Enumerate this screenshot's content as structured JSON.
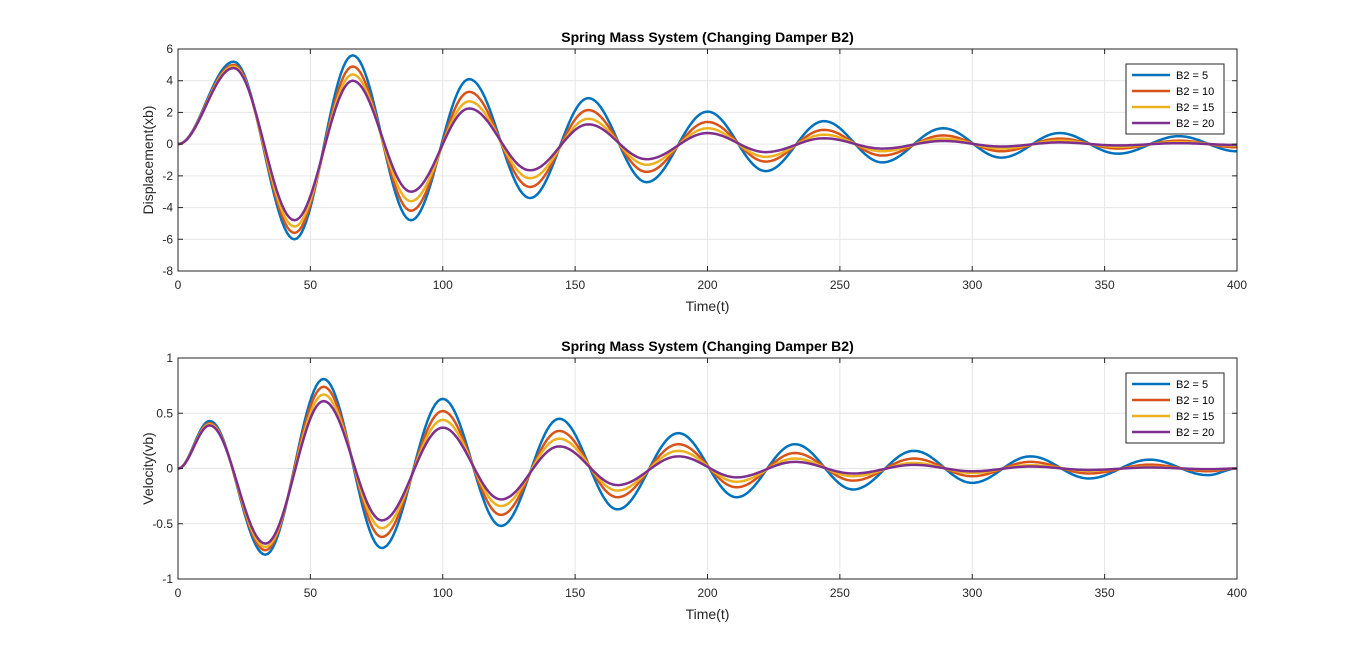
{
  "colors": [
    "#0072BD",
    "#D95319",
    "#EDB120",
    "#7E2F8E"
  ],
  "chart_data": [
    {
      "type": "line",
      "title": "Spring Mass System (Changing Damper B2)",
      "xlabel": "Time(t)",
      "ylabel": "Displacement(xb)",
      "xlim": [
        0,
        400
      ],
      "ylim": [
        -8,
        6
      ],
      "xticks": [
        0,
        50,
        100,
        150,
        200,
        250,
        300,
        350,
        400
      ],
      "yticks": [
        -8,
        -6,
        -4,
        -2,
        0,
        2,
        4,
        6
      ],
      "xtick_labels": [
        "0",
        "50",
        "100",
        "150",
        "200",
        "250",
        "300",
        "350",
        "400"
      ],
      "ytick_labels": [
        "-8",
        "-6",
        "-4",
        "-2",
        "0",
        "2",
        "4",
        "6"
      ],
      "grid": true,
      "legend_position": "top-right",
      "x": [
        0,
        21,
        44,
        66,
        88,
        110,
        133,
        155,
        177,
        200,
        222,
        244,
        266,
        289,
        311,
        333,
        355,
        378,
        400
      ],
      "series": [
        {
          "name": "B2 = 5",
          "values": [
            0,
            5.2,
            -6.0,
            5.6,
            -4.8,
            4.1,
            -3.4,
            2.9,
            -2.4,
            2.05,
            -1.7,
            1.45,
            -1.15,
            1.0,
            -0.85,
            0.7,
            -0.6,
            0.5,
            -0.45
          ]
        },
        {
          "name": "B2 = 10",
          "values": [
            0,
            5.0,
            -5.6,
            4.9,
            -4.2,
            3.3,
            -2.7,
            2.15,
            -1.75,
            1.4,
            -1.1,
            0.9,
            -0.72,
            0.55,
            -0.45,
            0.35,
            -0.28,
            0.22,
            -0.2
          ]
        },
        {
          "name": "B2 = 15",
          "values": [
            0,
            4.9,
            -5.2,
            4.4,
            -3.6,
            2.7,
            -2.15,
            1.6,
            -1.3,
            1.0,
            -0.8,
            0.6,
            -0.45,
            0.35,
            -0.28,
            0.22,
            -0.17,
            0.13,
            -0.1
          ]
        },
        {
          "name": "B2 = 20",
          "values": [
            0,
            4.8,
            -4.8,
            4.0,
            -3.0,
            2.25,
            -1.65,
            1.25,
            -0.95,
            0.7,
            -0.5,
            0.37,
            -0.28,
            0.2,
            -0.15,
            0.11,
            -0.08,
            0.06,
            -0.05
          ]
        }
      ]
    },
    {
      "type": "line",
      "title": "Spring Mass System (Changing Damper B2)",
      "xlabel": "Time(t)",
      "ylabel": "Velocity(vb)",
      "xlim": [
        0,
        400
      ],
      "ylim": [
        -1,
        1
      ],
      "xticks": [
        0,
        50,
        100,
        150,
        200,
        250,
        300,
        350,
        400
      ],
      "yticks": [
        -1,
        -0.5,
        0,
        0.5,
        1
      ],
      "xtick_labels": [
        "0",
        "50",
        "100",
        "150",
        "200",
        "250",
        "300",
        "350",
        "400"
      ],
      "ytick_labels": [
        "-1",
        "-0.5",
        "0",
        "0.5",
        "1"
      ],
      "grid": true,
      "legend_position": "top-right",
      "x": [
        0,
        12,
        33,
        55,
        77,
        100,
        122,
        144,
        166,
        189,
        211,
        233,
        255,
        278,
        300,
        322,
        344,
        367,
        389,
        400
      ],
      "series": [
        {
          "name": "B2 = 5",
          "values": [
            0,
            0.43,
            -0.78,
            0.81,
            -0.72,
            0.63,
            -0.52,
            0.45,
            -0.37,
            0.32,
            -0.26,
            0.22,
            -0.19,
            0.16,
            -0.13,
            0.11,
            -0.09,
            0.08,
            -0.06,
            0
          ]
        },
        {
          "name": "B2 = 10",
          "values": [
            0,
            0.41,
            -0.74,
            0.74,
            -0.62,
            0.52,
            -0.42,
            0.34,
            -0.26,
            0.22,
            -0.17,
            0.14,
            -0.11,
            0.09,
            -0.07,
            0.06,
            -0.045,
            0.035,
            -0.025,
            0
          ]
        },
        {
          "name": "B2 = 15",
          "values": [
            0,
            0.4,
            -0.71,
            0.67,
            -0.54,
            0.44,
            -0.34,
            0.27,
            -0.2,
            0.16,
            -0.12,
            0.09,
            -0.07,
            0.05,
            -0.04,
            0.03,
            -0.02,
            0.015,
            -0.01,
            0
          ]
        },
        {
          "name": "B2 = 20",
          "values": [
            0,
            0.39,
            -0.68,
            0.61,
            -0.47,
            0.37,
            -0.28,
            0.2,
            -0.15,
            0.11,
            -0.08,
            0.06,
            -0.045,
            0.033,
            -0.025,
            0.018,
            -0.013,
            0.009,
            -0.006,
            0
          ]
        }
      ]
    }
  ]
}
